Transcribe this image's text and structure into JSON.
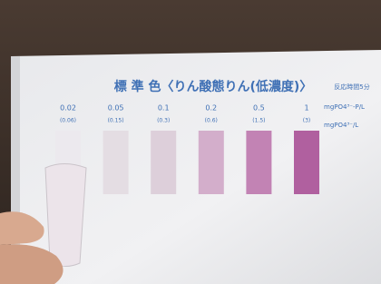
{
  "title": "標 準 色〈りん酸態りん(低濃度)〉",
  "note": "反応時間5分",
  "swatches": [
    {
      "value": "0.02",
      "alt": "(0.06)",
      "color": "#ece9ee"
    },
    {
      "value": "0.05",
      "alt": "(0.15)",
      "color": "#e4dde3"
    },
    {
      "value": "0.1",
      "alt": "(0.3)",
      "color": "#ddcfda"
    },
    {
      "value": "0.2",
      "alt": "(0.6)",
      "color": "#d3aecb"
    },
    {
      "value": "0.5",
      "alt": "(1.5)",
      "color": "#c283b4"
    },
    {
      "value": "1",
      "alt": "(3)",
      "color": "#b0609f"
    }
  ],
  "units": [
    "mgPO4³⁻-P/L",
    "mgPO4³⁻/L"
  ]
}
